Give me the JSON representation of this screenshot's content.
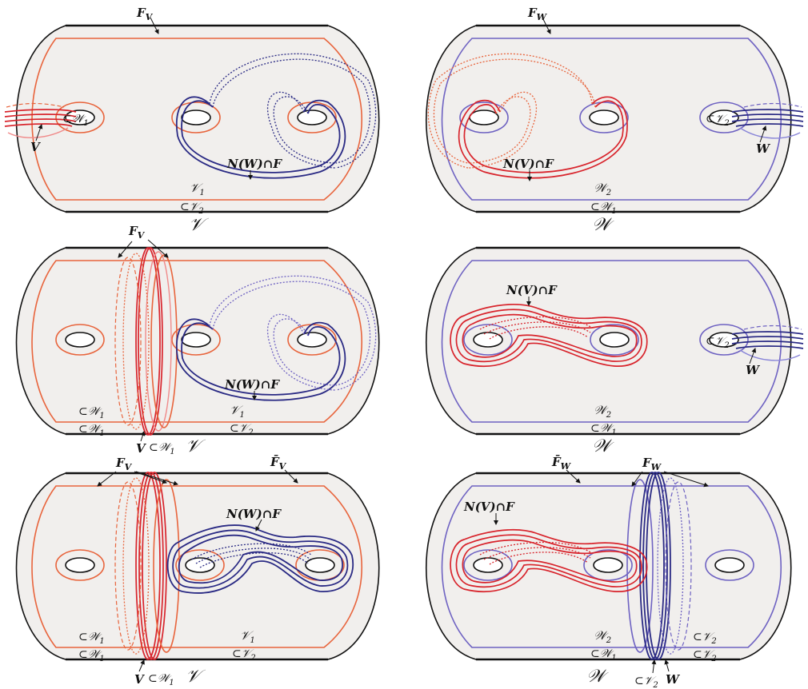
{
  "labels": {
    "FV": "F",
    "FV_sub": "V",
    "FW": "F",
    "FW_sub": "W",
    "FbarV": "F̄",
    "FbarV_sub": "V",
    "FbarW": "F̄",
    "FbarW_sub": "W",
    "V": "V",
    "W": "W",
    "NW_F": "N(W)∩F",
    "NV_F": "N(V)∩F",
    "subW1": "⊂𝒲",
    "subW1_sub": "1",
    "subV2": "⊂𝒱",
    "subV2_sub": "2",
    "V1": "𝒱",
    "V1_sub": "1",
    "W2": "𝒲",
    "W2_sub": "2",
    "calV": "𝒱",
    "calW": "𝒲"
  },
  "colors": {
    "surface": "#f1efed",
    "orange": "#e8643c",
    "red": "#d8242c",
    "purple": "#6e62c2",
    "navy": "#2a2a84"
  }
}
